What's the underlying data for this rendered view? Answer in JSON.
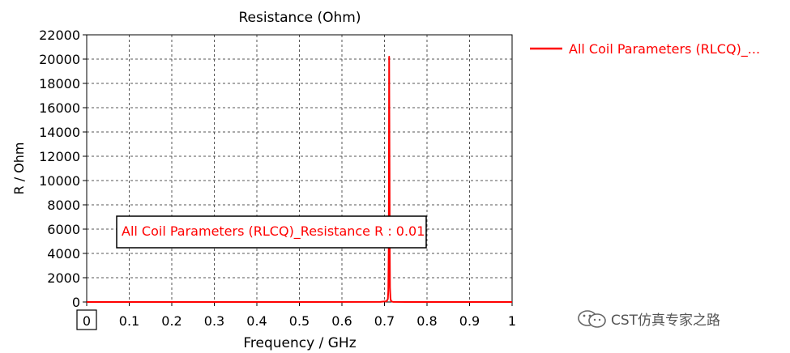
{
  "chart_data": {
    "type": "line",
    "title": "Resistance (Ohm)",
    "xlabel": "Frequency / GHz",
    "ylabel": "R / Ohm",
    "xlim": [
      0,
      1
    ],
    "ylim": [
      0,
      22000
    ],
    "x_ticks": [
      "0",
      "0.1",
      "0.2",
      "0.3",
      "0.4",
      "0.5",
      "0.6",
      "0.7",
      "0.8",
      "0.9",
      "1"
    ],
    "y_ticks": [
      "0",
      "2000",
      "4000",
      "6000",
      "8000",
      "10000",
      "12000",
      "14000",
      "16000",
      "18000",
      "20000",
      "22000"
    ],
    "grid": true,
    "legend_position": "right",
    "series": [
      {
        "name": "All Coil Parameters (RLCQ)_...",
        "color": "#ff0000",
        "x": [
          0,
          0.5,
          0.69,
          0.705,
          0.708,
          0.709,
          0.71,
          0.711,
          0.712,
          0.7125,
          0.713,
          0.714,
          0.715,
          0.717,
          0.72,
          0.75,
          0.9,
          1.0
        ],
        "y": [
          0,
          0,
          5,
          60,
          250,
          900,
          4500,
          20200,
          10500,
          4000,
          1200,
          350,
          120,
          40,
          10,
          2,
          0,
          0
        ]
      }
    ],
    "annotation": "All Coil Parameters (RLCQ)_Resistance R : 0.01",
    "boxed_x_tick": "0"
  },
  "watermark": "CST仿真专家之路"
}
